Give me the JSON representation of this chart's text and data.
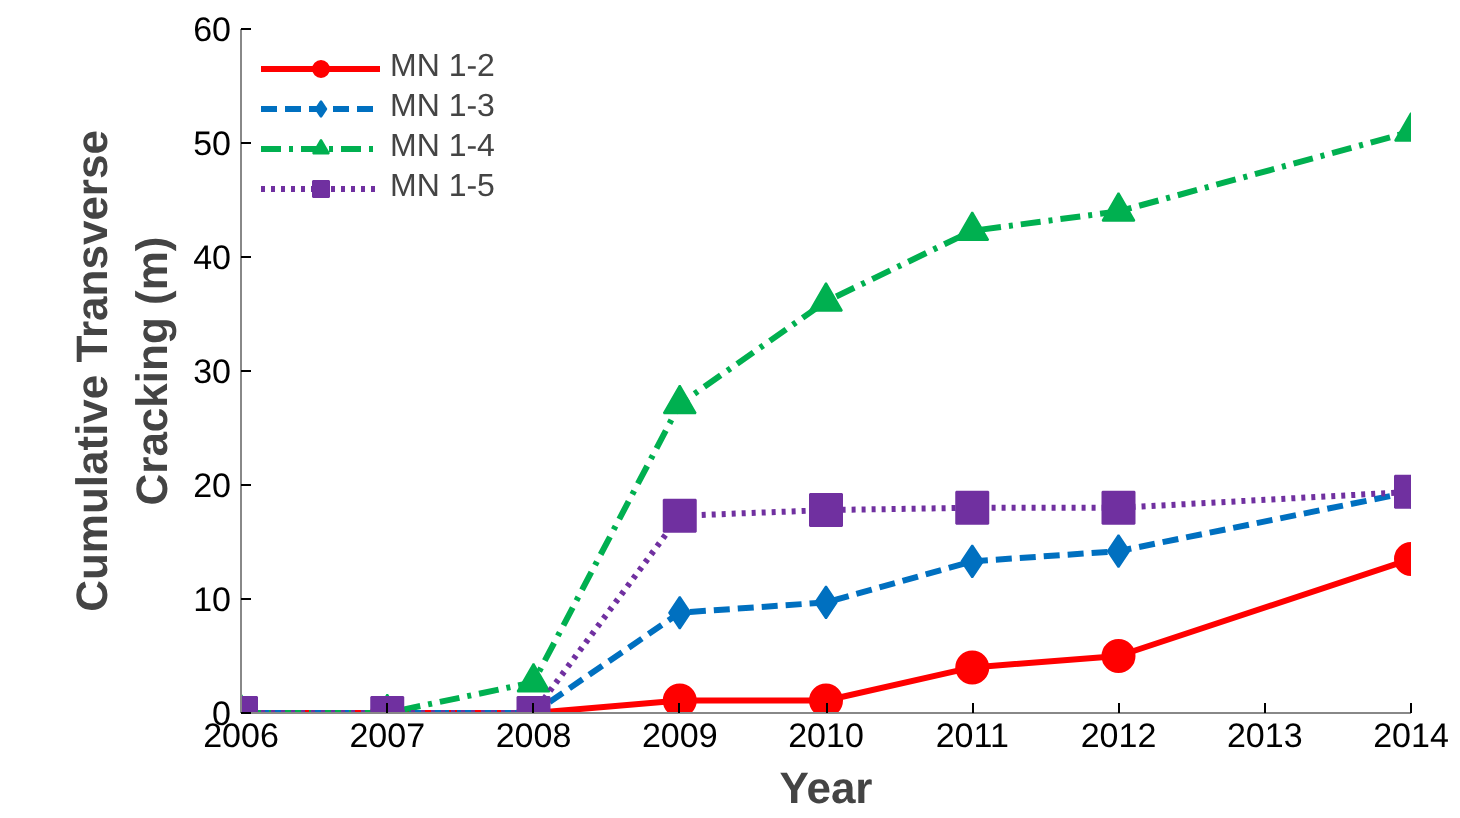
{
  "chart_data": {
    "type": "line",
    "xlabel": "Year",
    "ylabel": "Cumulative Transverse\nCracking (m)",
    "x": [
      2006,
      2007,
      2008,
      2009,
      2010,
      2011,
      2012,
      2014
    ],
    "xlim": [
      2006,
      2014
    ],
    "xticks": [
      2006,
      2007,
      2008,
      2009,
      2010,
      2011,
      2012,
      2013,
      2014
    ],
    "ylim": [
      0,
      60
    ],
    "yticks": [
      0,
      10,
      20,
      30,
      40,
      50,
      60
    ],
    "grid": false,
    "legend": "top left",
    "series": [
      {
        "name": "MN 1-2",
        "color": "#ff0000",
        "marker": "circle",
        "line_style": "solid",
        "values": [
          0,
          0,
          0,
          1.1,
          1.1,
          4,
          5,
          13.5
        ]
      },
      {
        "name": "MN 1-3",
        "color": "#0070c0",
        "marker": "diamond",
        "line_style": "dashed",
        "values": [
          0,
          0,
          0,
          8.8,
          9.7,
          13.3,
          14.2,
          19.4
        ]
      },
      {
        "name": "MN 1-4",
        "color": "#00b050",
        "marker": "triangle",
        "line_style": "dashdot",
        "values": [
          0,
          0,
          2.7,
          27.1,
          36.1,
          42.3,
          44,
          51
        ]
      },
      {
        "name": "MN 1-5",
        "color": "#7030a0",
        "marker": "square",
        "line_style": "dotted",
        "values": [
          0,
          0,
          0,
          17.3,
          17.8,
          18,
          18,
          19.4
        ]
      }
    ]
  }
}
